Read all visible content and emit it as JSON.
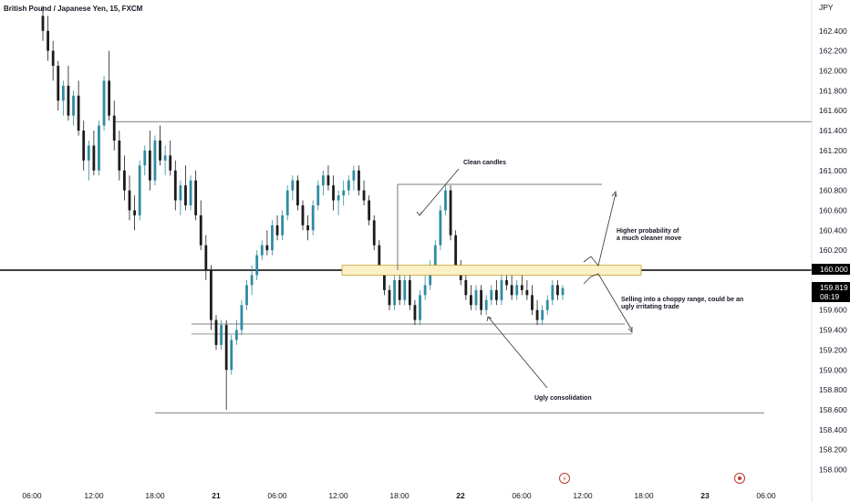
{
  "chart_title": "British Pound / Japanese Yen, 15, FXCM",
  "currency": "JPY",
  "price_labels": [
    "162.400",
    "162.200",
    "162.000",
    "161.800",
    "161.600",
    "161.400",
    "161.200",
    "161.000",
    "160.800",
    "160.600",
    "160.400",
    "160.200",
    "160.000",
    "159.800",
    "159.600",
    "159.400",
    "159.200",
    "159.000",
    "158.800",
    "158.600",
    "158.400",
    "158.200",
    "158.000"
  ],
  "time_labels": [
    "06:00",
    "12:00",
    "18:00",
    "21",
    "06:00",
    "12:00",
    "18:00",
    "22",
    "06:00",
    "12:00",
    "18:00",
    "23",
    "06:00"
  ],
  "current_price": {
    "value": "159.819",
    "countdown": "08:19"
  },
  "marked_level": "160.000",
  "annotations": {
    "clean": "Clean candles",
    "higher_1": "Higher probability of",
    "higher_2": "a much cleaner move",
    "selling_1": "Selling into a choppy range, could be an",
    "selling_2": "ugly irritating trade",
    "ugly": "Ugly consolidation"
  },
  "colors": {
    "up": "#2f8ba3",
    "down": "#1c1c1c",
    "zone_fill": "#fbf0c8",
    "zone_stroke": "#c9a227",
    "level_line": "#000000",
    "marker": "#c0392b"
  },
  "chart_data": {
    "type": "candlestick",
    "symbol": "British Pound / Japanese Yen",
    "interval": "15",
    "source": "FXCM",
    "ylim": [
      157.9,
      162.6
    ],
    "horizontal_levels": [
      161.49,
      160.0,
      159.46,
      159.36,
      158.57
    ],
    "zone": [
      159.96,
      160.04
    ],
    "ohlc": [
      [
        162.55,
        162.65,
        162.3,
        162.4
      ],
      [
        162.4,
        162.55,
        162.1,
        162.2
      ],
      [
        162.2,
        162.3,
        161.9,
        162.05
      ],
      [
        162.05,
        162.1,
        161.6,
        161.7
      ],
      [
        161.7,
        161.9,
        161.55,
        161.85
      ],
      [
        161.85,
        162.05,
        161.5,
        161.55
      ],
      [
        161.55,
        161.8,
        161.45,
        161.75
      ],
      [
        161.75,
        161.9,
        161.35,
        161.4
      ],
      [
        161.4,
        161.5,
        161.0,
        161.1
      ],
      [
        161.1,
        161.3,
        160.9,
        161.25
      ],
      [
        161.25,
        161.4,
        160.95,
        161.0
      ],
      [
        161.0,
        161.5,
        160.95,
        161.45
      ],
      [
        161.45,
        161.95,
        161.4,
        161.9
      ],
      [
        161.9,
        162.2,
        161.5,
        161.55
      ],
      [
        161.55,
        161.7,
        161.2,
        161.3
      ],
      [
        161.3,
        161.4,
        160.9,
        161.0
      ],
      [
        161.0,
        161.15,
        160.7,
        160.8
      ],
      [
        160.8,
        160.95,
        160.5,
        160.6
      ],
      [
        160.6,
        160.75,
        160.4,
        160.55
      ],
      [
        160.55,
        161.1,
        160.5,
        161.05
      ],
      [
        161.05,
        161.25,
        160.95,
        161.2
      ],
      [
        161.2,
        161.4,
        160.8,
        160.9
      ],
      [
        160.9,
        161.35,
        160.85,
        161.3
      ],
      [
        161.3,
        161.45,
        161.05,
        161.1
      ],
      [
        161.1,
        161.25,
        160.95,
        161.15
      ],
      [
        161.15,
        161.3,
        160.95,
        161.0
      ],
      [
        161.0,
        161.1,
        160.6,
        160.7
      ],
      [
        160.7,
        160.9,
        160.55,
        160.85
      ],
      [
        160.85,
        161.05,
        160.6,
        160.65
      ],
      [
        160.65,
        160.95,
        160.6,
        160.9
      ],
      [
        160.9,
        161.0,
        160.5,
        160.55
      ],
      [
        160.55,
        160.7,
        160.2,
        160.25
      ],
      [
        160.25,
        160.35,
        159.9,
        160.0
      ],
      [
        160.0,
        160.05,
        159.4,
        159.5
      ],
      [
        159.5,
        159.55,
        159.2,
        159.25
      ],
      [
        159.25,
        159.5,
        159.2,
        159.45
      ],
      [
        159.45,
        159.5,
        158.6,
        159.0
      ],
      [
        159.0,
        159.35,
        158.95,
        159.3
      ],
      [
        159.3,
        159.5,
        159.25,
        159.4
      ],
      [
        159.4,
        159.7,
        159.35,
        159.65
      ],
      [
        159.65,
        159.9,
        159.6,
        159.85
      ],
      [
        159.85,
        160.05,
        159.75,
        159.95
      ],
      [
        159.95,
        160.2,
        159.9,
        160.15
      ],
      [
        160.15,
        160.3,
        160.1,
        160.25
      ],
      [
        160.25,
        160.4,
        160.15,
        160.2
      ],
      [
        160.2,
        160.5,
        160.15,
        160.45
      ],
      [
        160.45,
        160.55,
        160.3,
        160.35
      ],
      [
        160.35,
        160.6,
        160.3,
        160.55
      ],
      [
        160.55,
        160.85,
        160.5,
        160.8
      ],
      [
        160.8,
        160.95,
        160.7,
        160.9
      ],
      [
        160.9,
        160.95,
        160.6,
        160.65
      ],
      [
        160.65,
        160.7,
        160.4,
        160.45
      ],
      [
        160.45,
        160.55,
        160.3,
        160.4
      ],
      [
        160.4,
        160.7,
        160.35,
        160.65
      ],
      [
        160.65,
        160.9,
        160.6,
        160.85
      ],
      [
        160.85,
        161.0,
        160.75,
        160.95
      ],
      [
        160.95,
        161.05,
        160.8,
        160.85
      ],
      [
        160.85,
        160.95,
        160.6,
        160.7
      ],
      [
        160.7,
        160.8,
        160.55,
        160.75
      ],
      [
        160.75,
        160.9,
        160.65,
        160.8
      ],
      [
        160.8,
        160.95,
        160.75,
        160.9
      ],
      [
        160.9,
        161.05,
        160.8,
        161.0
      ],
      [
        161.0,
        161.05,
        160.75,
        160.8
      ],
      [
        160.8,
        160.9,
        160.65,
        160.7
      ],
      [
        160.7,
        160.75,
        160.45,
        160.5
      ],
      [
        160.5,
        160.55,
        160.2,
        160.25
      ],
      [
        160.25,
        160.3,
        159.95,
        160.0
      ],
      [
        160.0,
        160.05,
        159.75,
        159.8
      ],
      [
        159.8,
        159.85,
        159.6,
        159.65
      ],
      [
        159.65,
        160.0,
        159.6,
        159.9
      ],
      [
        159.9,
        159.95,
        159.65,
        159.7
      ],
      [
        159.7,
        159.95,
        159.65,
        159.9
      ],
      [
        159.9,
        159.95,
        159.6,
        159.65
      ],
      [
        159.65,
        159.7,
        159.45,
        159.5
      ],
      [
        159.5,
        159.8,
        159.45,
        159.75
      ],
      [
        159.75,
        159.95,
        159.7,
        159.85
      ],
      [
        159.85,
        160.1,
        159.8,
        160.05
      ],
      [
        160.05,
        160.3,
        160.0,
        160.25
      ],
      [
        160.25,
        160.65,
        160.2,
        160.6
      ],
      [
        160.6,
        160.85,
        160.55,
        160.8
      ],
      [
        160.8,
        160.85,
        160.3,
        160.35
      ],
      [
        160.35,
        160.4,
        160.0,
        160.05
      ],
      [
        160.05,
        160.1,
        159.85,
        159.9
      ],
      [
        159.9,
        160.0,
        159.7,
        159.75
      ],
      [
        159.75,
        159.85,
        159.6,
        159.65
      ],
      [
        159.65,
        159.85,
        159.6,
        159.8
      ],
      [
        159.8,
        159.85,
        159.55,
        159.6
      ],
      [
        159.6,
        159.75,
        159.55,
        159.7
      ],
      [
        159.7,
        159.85,
        159.65,
        159.8
      ],
      [
        159.8,
        159.9,
        159.65,
        159.7
      ],
      [
        159.7,
        159.95,
        159.65,
        159.9
      ],
      [
        159.9,
        160.0,
        159.8,
        159.85
      ],
      [
        159.85,
        159.95,
        159.7,
        159.75
      ],
      [
        159.75,
        159.9,
        159.7,
        159.85
      ],
      [
        159.85,
        159.95,
        159.75,
        159.8
      ],
      [
        159.8,
        159.9,
        159.7,
        159.75
      ],
      [
        159.75,
        159.85,
        159.55,
        159.6
      ],
      [
        159.6,
        159.7,
        159.45,
        159.5
      ],
      [
        159.5,
        159.65,
        159.45,
        159.6
      ],
      [
        159.6,
        159.75,
        159.55,
        159.7
      ],
      [
        159.7,
        159.9,
        159.65,
        159.85
      ],
      [
        159.85,
        159.9,
        159.7,
        159.75
      ],
      [
        159.75,
        159.85,
        159.7,
        159.82
      ]
    ]
  }
}
